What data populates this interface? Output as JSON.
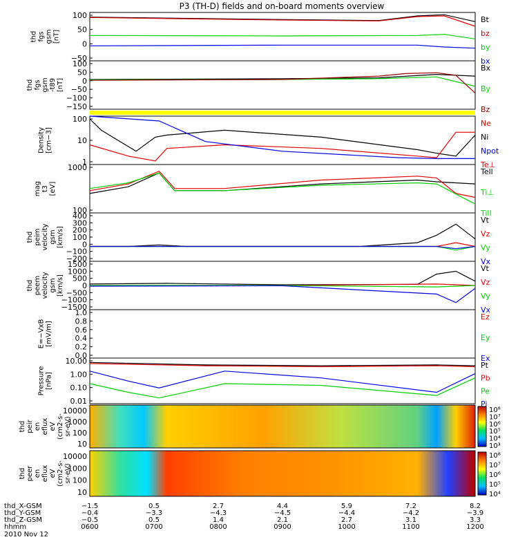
{
  "title": "P3 (TH-D) fields and on-board moments overview",
  "colors": {
    "black": "#000000",
    "red": "#e00000",
    "green": "#00d000",
    "blue": "#0000e0",
    "darkred": "#9b0000",
    "yellow": "#ffff00"
  },
  "chart_data": [
    {
      "type": "line",
      "panel_id": "fgs_gsm",
      "ylabel": [
        "thd",
        "fgs",
        "gsm",
        "[nT]"
      ],
      "yticks": [
        "100",
        "50",
        "0",
        "−50"
      ],
      "ylim": [
        -100,
        110
      ],
      "legend": [
        {
          "label": "Bt",
          "color": "black"
        },
        {
          "label": "bz",
          "color": "red"
        },
        {
          "label": "by",
          "color": "green"
        },
        {
          "label": "bx",
          "color": "blue"
        }
      ],
      "series": [
        {
          "color": "black",
          "x": [
            0,
            0.45,
            0.75,
            0.85,
            0.92,
            1
          ],
          "y": [
            90,
            80,
            75,
            95,
            100,
            70
          ]
        },
        {
          "color": "red",
          "x": [
            0,
            0.45,
            0.75,
            0.85,
            0.92,
            1
          ],
          "y": [
            88,
            78,
            73,
            92,
            95,
            50
          ]
        },
        {
          "color": "green",
          "x": [
            0,
            0.5,
            0.85,
            0.92,
            1
          ],
          "y": [
            10,
            8,
            10,
            15,
            -5
          ]
        },
        {
          "color": "blue",
          "x": [
            0,
            0.5,
            0.85,
            0.92,
            1
          ],
          "y": [
            -35,
            -32,
            -32,
            -40,
            -45
          ]
        }
      ]
    },
    {
      "type": "line",
      "panel_id": "fgs_gsm_t89",
      "ylabel": [
        "thd",
        "fgs",
        "gsm",
        "-t89",
        "[nT]"
      ],
      "yticks": [
        "100",
        "50",
        "0",
        "−50",
        "−100",
        "−150"
      ],
      "ylim": [
        -175,
        110
      ],
      "legend": [
        {
          "label": "Bx",
          "color": "black"
        },
        {
          "label": "By",
          "color": "green"
        },
        {
          "label": "Bz",
          "color": "darkred"
        }
      ],
      "series": [
        {
          "color": "black",
          "x": [
            0,
            0.5,
            0.75,
            0.9,
            1
          ],
          "y": [
            0,
            5,
            10,
            30,
            20
          ]
        },
        {
          "color": "green",
          "x": [
            0,
            0.5,
            0.75,
            0.9,
            1
          ],
          "y": [
            -2,
            0,
            5,
            15,
            -40
          ]
        },
        {
          "color": "darkred",
          "x": [
            0,
            0.5,
            0.75,
            0.82,
            0.9,
            0.95,
            1
          ],
          "y": [
            -5,
            0,
            20,
            35,
            40,
            25,
            -80
          ]
        }
      ]
    },
    {
      "type": "heatmap",
      "panel_id": "yellow_bar",
      "ylabel": [],
      "colorbar": "yellow"
    },
    {
      "type": "line",
      "panel_id": "density",
      "ylabel": [
        "Density",
        "[cm−3]"
      ],
      "yticks": [
        "100",
        "10",
        "1"
      ],
      "ylim": [
        0.3,
        300
      ],
      "log": true,
      "legend": [
        {
          "label": "Ne",
          "color": "red"
        },
        {
          "label": "Ni",
          "color": "black"
        },
        {
          "label": "Npot",
          "color": "blue"
        },
        {
          "label": "Te⊥",
          "color": "red"
        }
      ],
      "series": [
        {
          "color": "black",
          "x": [
            0,
            0.03,
            0.12,
            0.17,
            0.2,
            0.35,
            0.6,
            0.85,
            0.9,
            0.95,
            1
          ],
          "y": [
            200,
            40,
            2,
            15,
            20,
            40,
            15,
            2.5,
            1.5,
            1,
            20
          ]
        },
        {
          "color": "red",
          "x": [
            0,
            0.1,
            0.17,
            0.2,
            0.35,
            0.6,
            0.85,
            0.9,
            0.95,
            1
          ],
          "y": [
            5,
            1,
            0.5,
            3,
            5,
            3,
            1,
            0.8,
            30,
            30
          ]
        },
        {
          "color": "blue",
          "x": [
            0,
            0.18,
            0.3,
            0.5,
            0.8,
            0.9,
            1
          ],
          "y": [
            300,
            150,
            8,
            2,
            0.8,
            0.7,
            0.7
          ]
        }
      ]
    },
    {
      "type": "line",
      "panel_id": "temperature",
      "ylabel": [
        "mag",
        "t3",
        "[eV]"
      ],
      "yticks": [
        "1000",
        "100"
      ],
      "ylim": [
        40,
        6000
      ],
      "log": true,
      "legend": [
        {
          "label": "Tell",
          "color": "black"
        },
        {
          "label": "Ti⊥",
          "color": "green"
        },
        {
          "label": "Till",
          "color": "green"
        }
      ],
      "series": [
        {
          "color": "black",
          "x": [
            0,
            0.1,
            0.18,
            0.22,
            0.35,
            0.6,
            0.85,
            0.9,
            1
          ],
          "y": [
            300,
            600,
            2500,
            400,
            400,
            800,
            1200,
            1000,
            800
          ]
        },
        {
          "color": "red",
          "x": [
            0,
            0.1,
            0.18,
            0.22,
            0.35,
            0.6,
            0.85,
            0.9,
            0.95,
            1
          ],
          "y": [
            400,
            800,
            3000,
            500,
            500,
            1200,
            1800,
            1500,
            300,
            200
          ]
        },
        {
          "color": "green",
          "x": [
            0,
            0.1,
            0.18,
            0.22,
            0.35,
            0.6,
            0.85,
            0.9,
            1
          ],
          "y": [
            500,
            900,
            2500,
            400,
            400,
            700,
            900,
            800,
            100
          ]
        }
      ]
    },
    {
      "type": "line",
      "panel_id": "ion_velocity",
      "ylabel": [
        "thd",
        "peim",
        "velocity",
        "gsm",
        "[km/s]"
      ],
      "yticks": [
        "400",
        "300",
        "200",
        "100",
        "0",
        "−100",
        "−200"
      ],
      "ylim": [
        -200,
        450
      ],
      "legend": [
        {
          "label": "Vt",
          "color": "black"
        },
        {
          "label": "Vz",
          "color": "red"
        },
        {
          "label": "Vy",
          "color": "green"
        },
        {
          "label": "Vx",
          "color": "blue"
        }
      ],
      "series": [
        {
          "color": "black",
          "x": [
            0,
            0.1,
            0.18,
            0.25,
            0.7,
            0.85,
            0.9,
            0.95,
            1
          ],
          "y": [
            0,
            0,
            20,
            0,
            0,
            50,
            150,
            300,
            100
          ]
        },
        {
          "color": "red",
          "x": [
            0,
            0.9,
            0.95,
            1
          ],
          "y": [
            0,
            0,
            50,
            0
          ]
        },
        {
          "color": "green",
          "x": [
            0,
            0.9,
            0.95,
            1
          ],
          "y": [
            0,
            0,
            -50,
            0
          ]
        },
        {
          "color": "blue",
          "x": [
            0,
            0.9,
            0.95,
            1
          ],
          "y": [
            0,
            0,
            -30,
            0
          ]
        }
      ]
    },
    {
      "type": "line",
      "panel_id": "electron_velocity",
      "ylabel": [
        "thd",
        "peem",
        "velocity",
        "gsm",
        "[km/s]"
      ],
      "yticks": [
        "1500",
        "1000",
        "500",
        "0",
        "−500",
        "−1000",
        "−1500"
      ],
      "ylim": [
        -1700,
        1700
      ],
      "legend": [
        {
          "label": "Vt",
          "color": "black"
        },
        {
          "label": "Vz",
          "color": "red"
        },
        {
          "label": "Vy",
          "color": "green"
        },
        {
          "label": "Vx",
          "color": "blue"
        }
      ],
      "series": [
        {
          "color": "black",
          "x": [
            0,
            0.2,
            0.5,
            0.85,
            0.9,
            0.95,
            1
          ],
          "y": [
            100,
            150,
            50,
            80,
            800,
            1000,
            300
          ]
        },
        {
          "color": "red",
          "x": [
            0,
            0.5,
            0.9,
            1
          ],
          "y": [
            0,
            0,
            100,
            0
          ]
        },
        {
          "color": "green",
          "x": [
            0,
            0.5,
            0.9,
            1
          ],
          "y": [
            0,
            0,
            -100,
            0
          ]
        },
        {
          "color": "blue",
          "x": [
            0,
            0.5,
            0.9,
            0.95,
            1
          ],
          "y": [
            -50,
            -20,
            -600,
            -1200,
            -200
          ]
        }
      ]
    },
    {
      "type": "line",
      "panel_id": "efield",
      "ylabel": [
        "E=−VxB",
        "[mV/m]"
      ],
      "yticks": [
        "1.0",
        "0.8",
        "0.6",
        "0.4",
        "0.2",
        "0.0"
      ],
      "ylim": [
        0,
        1
      ],
      "legend": [
        {
          "label": "Ez",
          "color": "red"
        },
        {
          "label": "Ey",
          "color": "green"
        },
        {
          "label": "Ex",
          "color": "blue"
        }
      ],
      "series": []
    },
    {
      "type": "line",
      "panel_id": "pressure",
      "ylabel": [
        "Pressure",
        "[nPa]"
      ],
      "yticks": [
        "10.00",
        "1.00",
        "0.10",
        "0.01"
      ],
      "ylim": [
        0.008,
        12
      ],
      "log": true,
      "legend": [
        {
          "label": "Pt",
          "color": "black"
        },
        {
          "label": "Pb",
          "color": "red"
        },
        {
          "label": "Pe",
          "color": "green"
        },
        {
          "label": "Pi",
          "color": "blue"
        }
      ],
      "series": [
        {
          "color": "black",
          "x": [
            0,
            0.3,
            0.6,
            0.9,
            1
          ],
          "y": [
            6,
            4,
            3.5,
            4,
            3.5
          ]
        },
        {
          "color": "red",
          "x": [
            0,
            0.3,
            0.6,
            0.9,
            1
          ],
          "y": [
            5,
            3.5,
            3,
            3.5,
            3
          ]
        },
        {
          "color": "green",
          "x": [
            0,
            0.1,
            0.18,
            0.35,
            0.6,
            0.9,
            1
          ],
          "y": [
            0.2,
            0.05,
            0.02,
            0.2,
            0.15,
            0.03,
            0.5
          ]
        },
        {
          "color": "blue",
          "x": [
            0,
            0.1,
            0.18,
            0.35,
            0.6,
            0.9,
            1
          ],
          "y": [
            1.5,
            0.3,
            0.1,
            1.5,
            0.5,
            0.05,
            1
          ]
        }
      ]
    },
    {
      "type": "heatmap",
      "panel_id": "ion_spectrogram",
      "ylabel": [
        "thd",
        "peir",
        "en",
        "eflux",
        "eV",
        "(cm2-s-",
        "sr-eV)"
      ],
      "yticks": [
        "10000",
        "1000",
        "100",
        "10"
      ],
      "colorbar_ticks": [
        "10⁸",
        "10⁷",
        "10⁶",
        "10⁵",
        "10⁴",
        "10³"
      ]
    },
    {
      "type": "heatmap",
      "panel_id": "electron_spectrogram",
      "ylabel": [
        "thd",
        "peer",
        "en",
        "eflux",
        "eV",
        "(cm2-s-",
        "sr-eV)"
      ],
      "yticks": [
        "10000",
        "1000",
        "100",
        "10"
      ],
      "colorbar_ticks": [
        "10⁸",
        "10⁷",
        "10⁶",
        "10⁵",
        "10⁴"
      ]
    }
  ],
  "xaxis": {
    "rows": [
      {
        "label": "thd_X-GSM",
        "values": [
          "−1.5",
          "0.5",
          "2.7",
          "4.4",
          "5.9",
          "7.2",
          "8.2"
        ]
      },
      {
        "label": "thd_Y-GSM",
        "values": [
          "−0.4",
          "−3.3",
          "−4.3",
          "−4.5",
          "−4.4",
          "−4.2",
          "−3.9"
        ]
      },
      {
        "label": "thd_Z-GSM",
        "values": [
          "−0.5",
          "0.5",
          "1.4",
          "2.1",
          "2.7",
          "3.1",
          "3.3"
        ]
      },
      {
        "label": "hhmm",
        "values": [
          "0600",
          "0700",
          "0800",
          "0900",
          "1000",
          "1100",
          "1200"
        ]
      }
    ],
    "date": "2010 Nov 12"
  }
}
